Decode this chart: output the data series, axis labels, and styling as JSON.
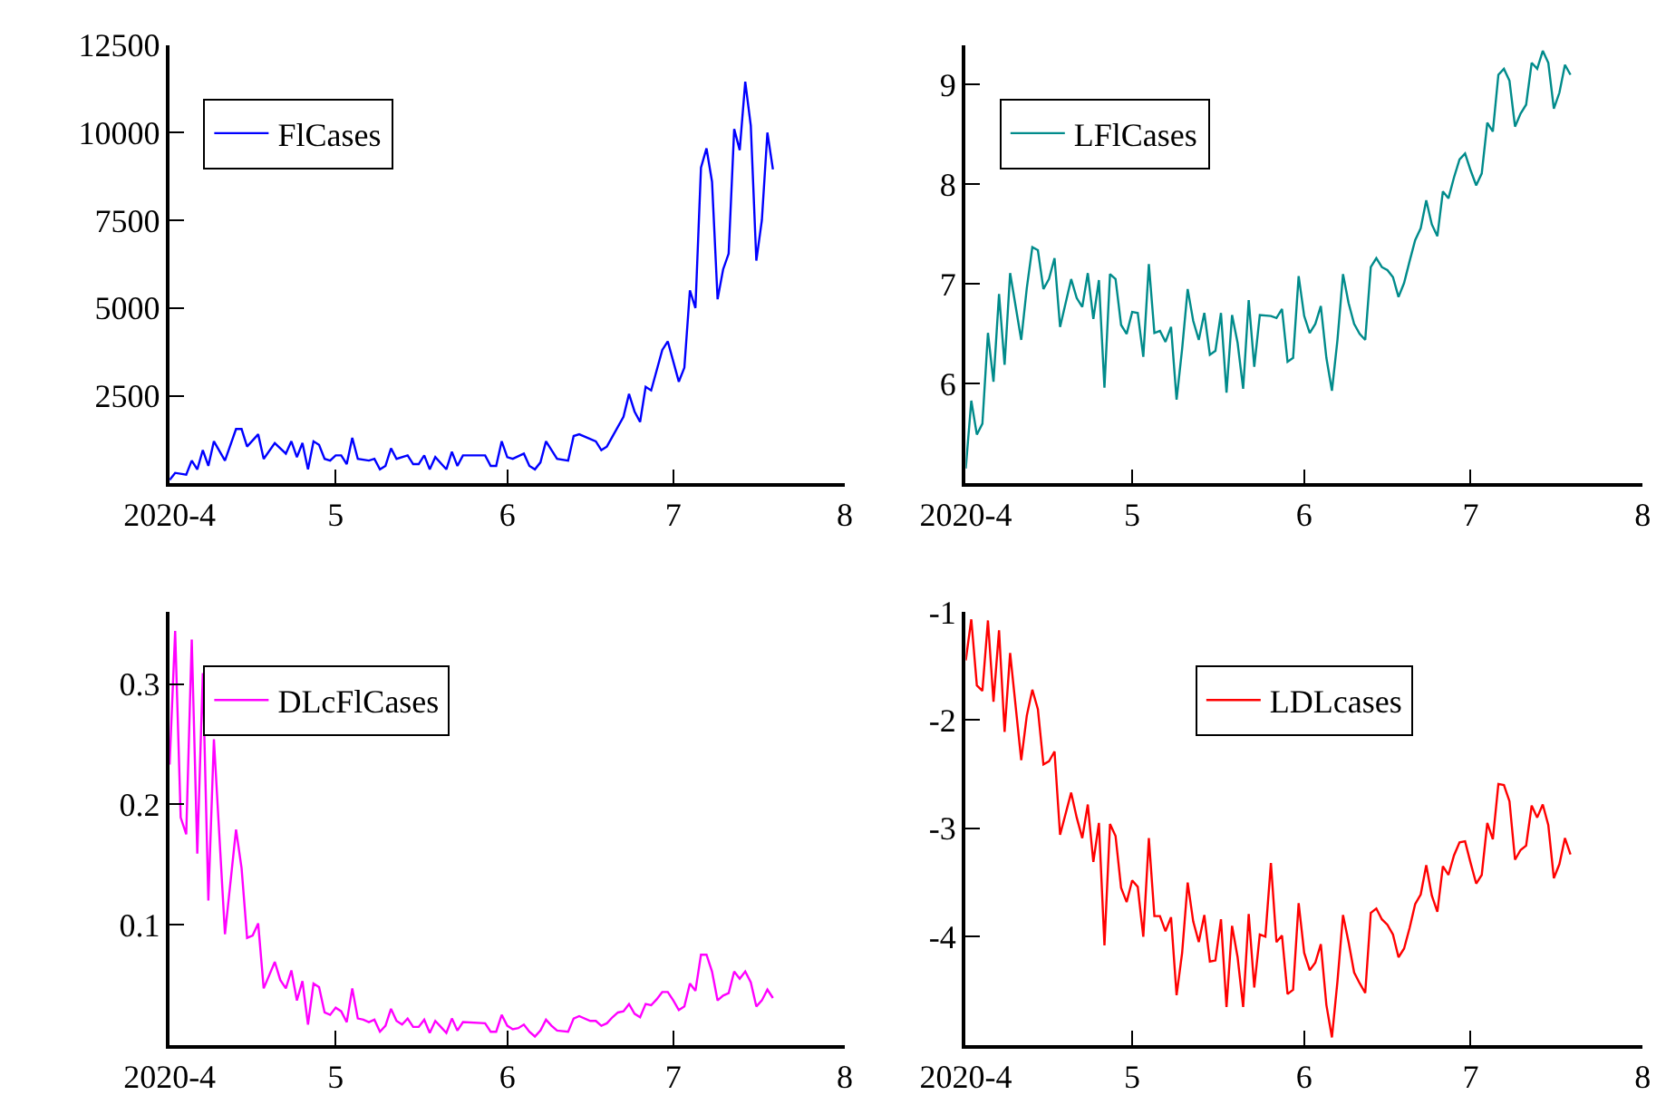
{
  "chart_data": [
    {
      "type": "line",
      "legend": "top left",
      "xlim": [
        "2020-04",
        "2020-08"
      ],
      "xticks": [
        {
          "value": "2020-04",
          "label": "2020-4"
        },
        {
          "value": "2020-05",
          "label": "5"
        },
        {
          "value": "2020-06",
          "label": "6"
        },
        {
          "value": "2020-07",
          "label": "7"
        },
        {
          "value": "2020-08",
          "label": "8"
        }
      ],
      "ylim": [
        0,
        12500
      ],
      "yticks": [
        2500,
        5000,
        7500,
        10000,
        12500
      ],
      "x": [
        "2020-04-01",
        "2020-04-02",
        "2020-04-04",
        "2020-04-05",
        "2020-04-06",
        "2020-04-07",
        "2020-04-08",
        "2020-04-09",
        "2020-04-11",
        "2020-04-13",
        "2020-04-14",
        "2020-04-15",
        "2020-04-17",
        "2020-04-18",
        "2020-04-20",
        "2020-04-22",
        "2020-04-23",
        "2020-04-24",
        "2020-04-25",
        "2020-04-26",
        "2020-04-27",
        "2020-04-28",
        "2020-04-29",
        "2020-04-30",
        "2020-05-01",
        "2020-05-02",
        "2020-05-03",
        "2020-05-04",
        "2020-05-05",
        "2020-05-07",
        "2020-05-08",
        "2020-05-09",
        "2020-05-10",
        "2020-05-11",
        "2020-05-12",
        "2020-05-14",
        "2020-05-15",
        "2020-05-16",
        "2020-05-17",
        "2020-05-18",
        "2020-05-19",
        "2020-05-21",
        "2020-05-22",
        "2020-05-23",
        "2020-05-24",
        "2020-05-28",
        "2020-05-29",
        "2020-05-30",
        "2020-05-31",
        "2020-06-01",
        "2020-06-02",
        "2020-06-04",
        "2020-06-05",
        "2020-06-06",
        "2020-06-07",
        "2020-06-08",
        "2020-06-10",
        "2020-06-12",
        "2020-06-13",
        "2020-06-14",
        "2020-06-17",
        "2020-06-18",
        "2020-06-19",
        "2020-06-22",
        "2020-06-23",
        "2020-06-24",
        "2020-06-25",
        "2020-06-26",
        "2020-06-27",
        "2020-06-29",
        "2020-06-30",
        "2020-07-02",
        "2020-07-03",
        "2020-07-04",
        "2020-07-05",
        "2020-07-06",
        "2020-07-07",
        "2020-07-08",
        "2020-07-09",
        "2020-07-10",
        "2020-07-11",
        "2020-07-12",
        "2020-07-13",
        "2020-07-14",
        "2020-07-15",
        "2020-07-16",
        "2020-07-17",
        "2020-07-18",
        "2020-07-19"
      ],
      "series": [
        {
          "name": "FlCases",
          "color": "#0000ff",
          "values": [
            100,
            300,
            250,
            650,
            400,
            950,
            500,
            1200,
            650,
            1550,
            1550,
            1050,
            1400,
            700,
            1150,
            850,
            1200,
            750,
            1150,
            400,
            1200,
            1100,
            700,
            650,
            800,
            800,
            550,
            1300,
            700,
            650,
            700,
            400,
            500,
            1000,
            700,
            800,
            550,
            550,
            800,
            400,
            750,
            400,
            900,
            500,
            800,
            800,
            500,
            500,
            1200,
            750,
            700,
            850,
            500,
            400,
            600,
            1200,
            700,
            650,
            1350,
            1400,
            1200,
            950,
            1050,
            1900,
            2550,
            2050,
            1750,
            2750,
            2650,
            3800,
            4050,
            2900,
            3300,
            5500,
            5000,
            9000,
            9550,
            8600,
            5250,
            6100,
            6550,
            10100,
            9500,
            11450,
            10200,
            6350,
            7500,
            10000,
            8950
          ]
        }
      ]
    },
    {
      "type": "line",
      "legend": "top left",
      "xlim": [
        "2020-04",
        "2020-08"
      ],
      "xticks": [
        {
          "value": "2020-04",
          "label": "2020-4"
        },
        {
          "value": "2020-05",
          "label": "5"
        },
        {
          "value": "2020-06",
          "label": "6"
        },
        {
          "value": "2020-07",
          "label": "7"
        },
        {
          "value": "2020-08",
          "label": "8"
        }
      ],
      "ylim": [
        5,
        9.4
      ],
      "yticks": [
        6,
        7,
        8,
        9
      ],
      "x": [
        "2020-04-01",
        "2020-04-02",
        "2020-04-03",
        "2020-04-04",
        "2020-04-05",
        "2020-04-06",
        "2020-04-07",
        "2020-04-08",
        "2020-04-09",
        "2020-04-11",
        "2020-04-12",
        "2020-04-13",
        "2020-04-14",
        "2020-04-15",
        "2020-04-16",
        "2020-04-17",
        "2020-04-18",
        "2020-04-20",
        "2020-04-21",
        "2020-04-22",
        "2020-04-23",
        "2020-04-24",
        "2020-04-25",
        "2020-04-26",
        "2020-04-27",
        "2020-04-28",
        "2020-04-29",
        "2020-04-30",
        "2020-05-01",
        "2020-05-02",
        "2020-05-03",
        "2020-05-04",
        "2020-05-05",
        "2020-05-06",
        "2020-05-07",
        "2020-05-08",
        "2020-05-09",
        "2020-05-10",
        "2020-05-11",
        "2020-05-12",
        "2020-05-13",
        "2020-05-14",
        "2020-05-15",
        "2020-05-16",
        "2020-05-17",
        "2020-05-18",
        "2020-05-19",
        "2020-05-20",
        "2020-05-21",
        "2020-05-22",
        "2020-05-23",
        "2020-05-24",
        "2020-05-26",
        "2020-05-27",
        "2020-05-28",
        "2020-05-29",
        "2020-05-30",
        "2020-05-31",
        "2020-06-01",
        "2020-06-02",
        "2020-06-03",
        "2020-06-04",
        "2020-06-05",
        "2020-06-06",
        "2020-06-07",
        "2020-06-08",
        "2020-06-09",
        "2020-06-10",
        "2020-06-11",
        "2020-06-12",
        "2020-06-13",
        "2020-06-14",
        "2020-06-15",
        "2020-06-16",
        "2020-06-17",
        "2020-06-18",
        "2020-06-19",
        "2020-06-20",
        "2020-06-21",
        "2020-06-22",
        "2020-06-23",
        "2020-06-24",
        "2020-06-25",
        "2020-06-26",
        "2020-06-27",
        "2020-06-28",
        "2020-06-29",
        "2020-06-30",
        "2020-07-01",
        "2020-07-02",
        "2020-07-03",
        "2020-07-04",
        "2020-07-05",
        "2020-07-06",
        "2020-07-07",
        "2020-07-08",
        "2020-07-09",
        "2020-07-10",
        "2020-07-11",
        "2020-07-12",
        "2020-07-13",
        "2020-07-14",
        "2020-07-15",
        "2020-07-16",
        "2020-07-17",
        "2020-07-18",
        "2020-07-19"
      ],
      "series": [
        {
          "name": "LFlCases",
          "color": "#008b8b",
          "values": [
            5.15,
            5.83,
            5.49,
            5.6,
            6.51,
            6.02,
            6.9,
            6.19,
            7.11,
            6.44,
            6.96,
            7.37,
            7.34,
            6.95,
            7.05,
            7.26,
            6.57,
            7.05,
            6.86,
            6.77,
            7.11,
            6.65,
            7.04,
            5.96,
            7.1,
            7.05,
            6.59,
            6.5,
            6.72,
            6.71,
            6.27,
            7.2,
            6.51,
            6.53,
            6.42,
            6.57,
            5.84,
            6.35,
            6.95,
            6.63,
            6.44,
            6.71,
            6.29,
            6.33,
            6.71,
            5.91,
            6.69,
            6.41,
            5.95,
            6.84,
            6.17,
            6.69,
            6.68,
            6.66,
            6.75,
            6.22,
            6.26,
            7.08,
            6.68,
            6.51,
            6.6,
            6.78,
            6.26,
            5.93,
            6.44,
            7.1,
            6.81,
            6.6,
            6.5,
            6.44,
            7.17,
            7.26,
            7.17,
            7.14,
            7.07,
            6.87,
            7.01,
            7.23,
            7.44,
            7.56,
            7.84,
            7.6,
            7.48,
            7.93,
            7.86,
            8.07,
            8.25,
            8.31,
            8.14,
            7.99,
            8.11,
            8.62,
            8.53,
            9.1,
            9.16,
            9.04,
            8.58,
            8.71,
            8.8,
            9.22,
            9.16,
            9.34,
            9.22,
            8.76,
            8.92,
            9.2,
            9.1
          ]
        }
      ]
    },
    {
      "type": "line",
      "legend": "top left",
      "xlim": [
        "2020-04",
        "2020-08"
      ],
      "xticks": [
        {
          "value": "2020-04",
          "label": "2020-4"
        },
        {
          "value": "2020-05",
          "label": "5"
        },
        {
          "value": "2020-06",
          "label": "6"
        },
        {
          "value": "2020-07",
          "label": "7"
        },
        {
          "value": "2020-08",
          "label": "8"
        }
      ],
      "ylim": [
        0,
        0.36
      ],
      "yticks": [
        0.1,
        0.2,
        0.3
      ],
      "x": [
        "2020-04-01",
        "2020-04-02",
        "2020-04-03",
        "2020-04-04",
        "2020-04-05",
        "2020-04-06",
        "2020-04-07",
        "2020-04-08",
        "2020-04-09",
        "2020-04-11",
        "2020-04-13",
        "2020-04-14",
        "2020-04-15",
        "2020-04-16",
        "2020-04-17",
        "2020-04-18",
        "2020-04-20",
        "2020-04-21",
        "2020-04-22",
        "2020-04-23",
        "2020-04-24",
        "2020-04-25",
        "2020-04-26",
        "2020-04-27",
        "2020-04-28",
        "2020-04-29",
        "2020-04-30",
        "2020-05-01",
        "2020-05-02",
        "2020-05-03",
        "2020-05-04",
        "2020-05-05",
        "2020-05-06",
        "2020-05-07",
        "2020-05-08",
        "2020-05-09",
        "2020-05-10",
        "2020-05-11",
        "2020-05-12",
        "2020-05-13",
        "2020-05-14",
        "2020-05-15",
        "2020-05-16",
        "2020-05-17",
        "2020-05-18",
        "2020-05-19",
        "2020-05-20",
        "2020-05-21",
        "2020-05-22",
        "2020-05-23",
        "2020-05-24",
        "2020-05-28",
        "2020-05-29",
        "2020-05-30",
        "2020-05-31",
        "2020-06-01",
        "2020-06-02",
        "2020-06-03",
        "2020-06-04",
        "2020-06-05",
        "2020-06-06",
        "2020-06-07",
        "2020-06-08",
        "2020-06-09",
        "2020-06-10",
        "2020-06-12",
        "2020-06-13",
        "2020-06-14",
        "2020-06-16",
        "2020-06-17",
        "2020-06-18",
        "2020-06-19",
        "2020-06-20",
        "2020-06-21",
        "2020-06-22",
        "2020-06-23",
        "2020-06-24",
        "2020-06-25",
        "2020-06-26",
        "2020-06-27",
        "2020-06-28",
        "2020-06-29",
        "2020-06-30",
        "2020-07-01",
        "2020-07-02",
        "2020-07-03",
        "2020-07-04",
        "2020-07-05",
        "2020-07-06",
        "2020-07-07",
        "2020-07-08",
        "2020-07-09",
        "2020-07-10",
        "2020-07-11",
        "2020-07-12",
        "2020-07-13",
        "2020-07-14",
        "2020-07-15",
        "2020-07-16",
        "2020-07-17",
        "2020-07-18",
        "2020-07-19"
      ],
      "series": [
        {
          "name": "DLcFlCases",
          "color": "#ff00ff",
          "values": [
            0.233,
            0.344,
            0.189,
            0.175,
            0.337,
            0.159,
            0.309,
            0.12,
            0.254,
            0.092,
            0.179,
            0.147,
            0.089,
            0.091,
            0.101,
            0.047,
            0.069,
            0.054,
            0.047,
            0.062,
            0.037,
            0.053,
            0.017,
            0.051,
            0.048,
            0.027,
            0.025,
            0.031,
            0.028,
            0.019,
            0.047,
            0.022,
            0.021,
            0.019,
            0.021,
            0.011,
            0.016,
            0.03,
            0.02,
            0.017,
            0.022,
            0.015,
            0.015,
            0.021,
            0.01,
            0.02,
            0.015,
            0.01,
            0.022,
            0.012,
            0.019,
            0.018,
            0.011,
            0.011,
            0.025,
            0.016,
            0.013,
            0.014,
            0.017,
            0.011,
            0.007,
            0.012,
            0.021,
            0.016,
            0.012,
            0.011,
            0.022,
            0.024,
            0.02,
            0.02,
            0.016,
            0.018,
            0.023,
            0.027,
            0.028,
            0.034,
            0.026,
            0.023,
            0.034,
            0.033,
            0.038,
            0.044,
            0.044,
            0.037,
            0.029,
            0.032,
            0.051,
            0.045,
            0.075,
            0.075,
            0.061,
            0.037,
            0.041,
            0.043,
            0.061,
            0.055,
            0.061,
            0.052,
            0.032,
            0.037,
            0.046,
            0.039
          ]
        }
      ]
    },
    {
      "type": "line",
      "legend": "top",
      "xlim": [
        "2020-04",
        "2020-08"
      ],
      "xticks": [
        {
          "value": "2020-04",
          "label": "2020-4"
        },
        {
          "value": "2020-05",
          "label": "5"
        },
        {
          "value": "2020-06",
          "label": "6"
        },
        {
          "value": "2020-07",
          "label": "7"
        },
        {
          "value": "2020-08",
          "label": "8"
        }
      ],
      "ylim": [
        -5,
        -1
      ],
      "yticks": [
        -4,
        -3,
        -2,
        -1
      ],
      "x": [
        "2020-04-01",
        "2020-04-02",
        "2020-04-03",
        "2020-04-04",
        "2020-04-05",
        "2020-04-06",
        "2020-04-07",
        "2020-04-08",
        "2020-04-09",
        "2020-04-11",
        "2020-04-12",
        "2020-04-13",
        "2020-04-14",
        "2020-04-15",
        "2020-04-16",
        "2020-04-17",
        "2020-04-18",
        "2020-04-20",
        "2020-04-21",
        "2020-04-22",
        "2020-04-23",
        "2020-04-24",
        "2020-04-25",
        "2020-04-26",
        "2020-04-27",
        "2020-04-28",
        "2020-04-29",
        "2020-04-30",
        "2020-05-01",
        "2020-05-02",
        "2020-05-03",
        "2020-05-04",
        "2020-05-05",
        "2020-05-06",
        "2020-05-07",
        "2020-05-08",
        "2020-05-09",
        "2020-05-10",
        "2020-05-11",
        "2020-05-12",
        "2020-05-13",
        "2020-05-14",
        "2020-05-15",
        "2020-05-16",
        "2020-05-17",
        "2020-05-18",
        "2020-05-19",
        "2020-05-20",
        "2020-05-21",
        "2020-05-22",
        "2020-05-23",
        "2020-05-24",
        "2020-05-25",
        "2020-05-26",
        "2020-05-27",
        "2020-05-28",
        "2020-05-29",
        "2020-05-30",
        "2020-05-31",
        "2020-06-01",
        "2020-06-02",
        "2020-06-03",
        "2020-06-04",
        "2020-06-05",
        "2020-06-06",
        "2020-06-07",
        "2020-06-08",
        "2020-06-09",
        "2020-06-10",
        "2020-06-11",
        "2020-06-12",
        "2020-06-13",
        "2020-06-14",
        "2020-06-15",
        "2020-06-16",
        "2020-06-17",
        "2020-06-18",
        "2020-06-19",
        "2020-06-20",
        "2020-06-21",
        "2020-06-22",
        "2020-06-23",
        "2020-06-24",
        "2020-06-25",
        "2020-06-26",
        "2020-06-27",
        "2020-06-28",
        "2020-06-29",
        "2020-06-30",
        "2020-07-01",
        "2020-07-02",
        "2020-07-03",
        "2020-07-04",
        "2020-07-05",
        "2020-07-06",
        "2020-07-07",
        "2020-07-08",
        "2020-07-09",
        "2020-07-10",
        "2020-07-11",
        "2020-07-12",
        "2020-07-13",
        "2020-07-14",
        "2020-07-15",
        "2020-07-16",
        "2020-07-17",
        "2020-07-18",
        "2020-07-19"
      ],
      "series": [
        {
          "name": "LDLcases",
          "color": "#ff0000",
          "values": [
            -1.45,
            -1.07,
            -1.68,
            -1.73,
            -1.08,
            -1.83,
            -1.17,
            -2.11,
            -1.38,
            -2.37,
            -1.96,
            -1.72,
            -1.9,
            -2.41,
            -2.38,
            -2.29,
            -3.06,
            -2.67,
            -2.9,
            -3.09,
            -2.78,
            -3.31,
            -2.95,
            -4.08,
            -2.96,
            -3.07,
            -3.55,
            -3.68,
            -3.48,
            -3.54,
            -4.0,
            -3.09,
            -3.81,
            -3.81,
            -3.95,
            -3.82,
            -4.54,
            -4.15,
            -3.5,
            -3.86,
            -4.05,
            -3.8,
            -4.23,
            -4.22,
            -3.84,
            -4.65,
            -3.9,
            -4.19,
            -4.65,
            -3.79,
            -4.47,
            -3.98,
            -4.0,
            -3.32,
            -4.05,
            -3.99,
            -4.53,
            -4.49,
            -3.69,
            -4.15,
            -4.31,
            -4.24,
            -4.07,
            -4.63,
            -4.93,
            -4.41,
            -3.8,
            -4.05,
            -4.33,
            -4.43,
            -4.52,
            -3.78,
            -3.74,
            -3.84,
            -3.89,
            -3.98,
            -4.19,
            -4.11,
            -3.92,
            -3.7,
            -3.61,
            -3.34,
            -3.62,
            -3.77,
            -3.35,
            -3.43,
            -3.25,
            -3.13,
            -3.12,
            -3.32,
            -3.51,
            -3.43,
            -2.95,
            -3.1,
            -2.59,
            -2.6,
            -2.75,
            -3.29,
            -3.2,
            -3.16,
            -2.79,
            -2.9,
            -2.78,
            -2.97,
            -3.46,
            -3.33,
            -3.09,
            -3.24
          ]
        }
      ]
    }
  ]
}
